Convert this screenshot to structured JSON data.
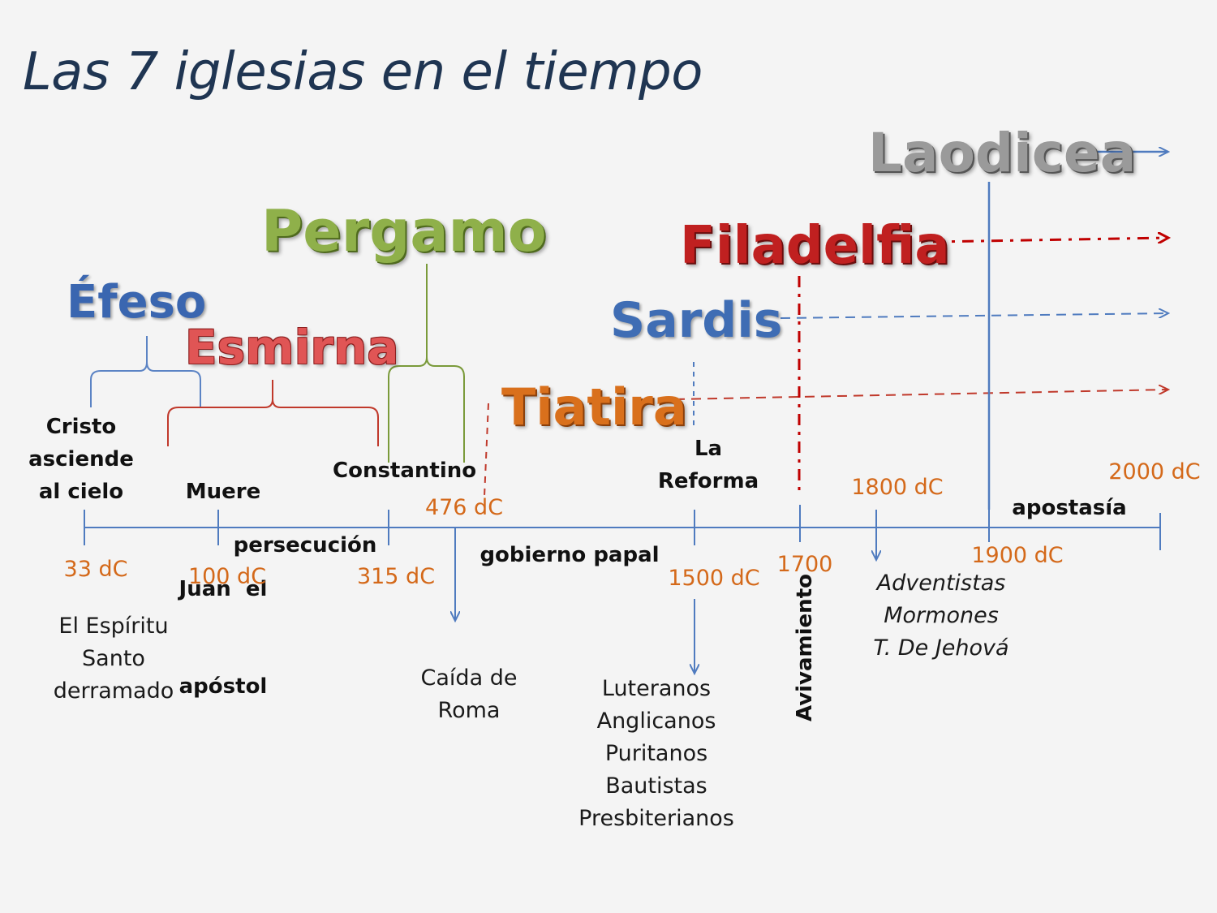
{
  "title": "Las 7 iglesias en el tiempo",
  "churches": {
    "efeso": "Éfeso",
    "esmirna": "Esmirna",
    "pergamo": "Pergamo",
    "tiatira": "Tiatira",
    "sardis": "Sardis",
    "filadelfia": "Filadelfia",
    "laodicea": "Laodicea"
  },
  "colors": {
    "efeso": "#3a66b0",
    "esmirna": "#e05555",
    "pergamo": "#8fb04a",
    "tiatira": "#d9701c",
    "sardis": "#3f6db4",
    "filadelfia": "#c02020",
    "laodicea": "#9a9a9a",
    "timeline": "#4f7bbf",
    "date": "#d4691a"
  },
  "events_above": {
    "cristo": [
      "Cristo",
      "asciende",
      "al cielo"
    ],
    "muere": [
      "Muere",
      "Juan  el",
      "apóstol"
    ],
    "constantino": "Constantino",
    "reforma": [
      "La",
      "Reforma"
    ],
    "apostasia": "apostasía"
  },
  "dates": {
    "d33": "33 dC",
    "d100": "100 dC",
    "d315": "315 dC",
    "d476": "476 dC",
    "d1500": "1500 dC",
    "d1700": "1700",
    "d1800": "1800 dC",
    "d1900": "1900 dC",
    "d2000": "2000 dC"
  },
  "periods": {
    "persecucion": "persecución",
    "gobierno": "gobierno papal",
    "avivamiento": "Avivamiento"
  },
  "events_below": {
    "espiritu": [
      "El Espíritu",
      "Santo",
      "derramado"
    ],
    "caida": [
      "Caída de",
      "Roma"
    ],
    "protestantes": [
      "Luteranos",
      "Anglicanos",
      "Puritanos",
      "Bautistas",
      "Presbiterianos"
    ],
    "sectas": [
      "Adventistas",
      "Mormones",
      "T. De Jehová"
    ]
  }
}
